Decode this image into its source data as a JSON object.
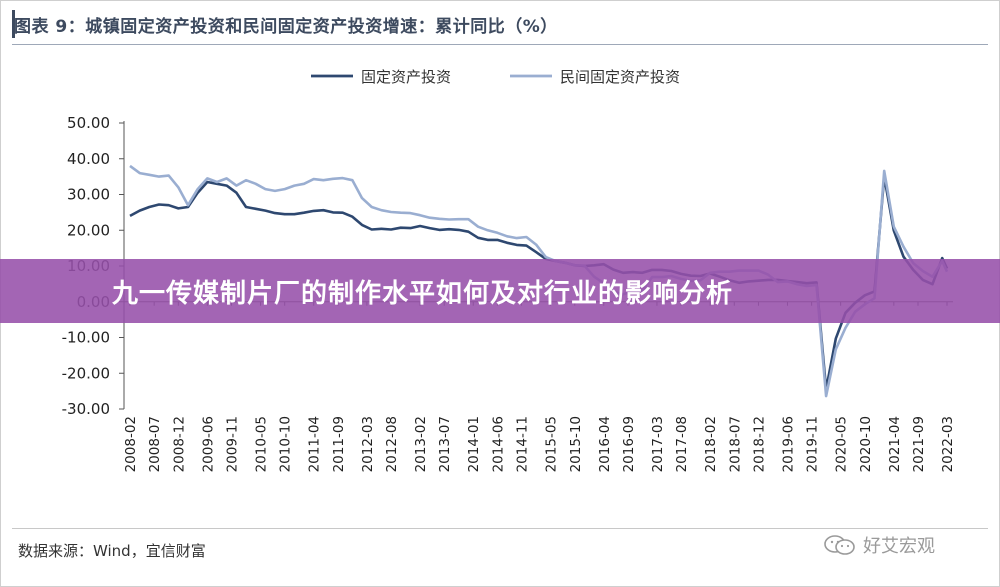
{
  "header": {
    "title": "图表 9：城镇固定资产投资和民间固定资产投资增速：累计同比（%）"
  },
  "source": {
    "text": "数据来源：Wind，宜信财富"
  },
  "watermark": {
    "text": "好艾宏观",
    "icon": "wechat-icon"
  },
  "banner": {
    "text": "九一传媒制片厂的制作水平如何及对行业的影响分析"
  },
  "colors": {
    "series1": "#2e4870",
    "series2": "#9aaed1",
    "banner": "#9650aa"
  },
  "chart_data": {
    "type": "line",
    "title": "图表 9：城镇固定资产投资和民间固定资产投资增速：累计同比（%）",
    "ylim": [
      -30,
      50
    ],
    "yticks": [
      "50.00",
      "40.00",
      "30.00",
      "20.00",
      "10.00",
      "0.00",
      "-10.00",
      "-20.00",
      "-30.00"
    ],
    "xtick_labels": [
      "2008-02",
      "2008-07",
      "2008-12",
      "2009-06",
      "2009-11",
      "2010-05",
      "2010-10",
      "2011-04",
      "2011-09",
      "2012-03",
      "2012-08",
      "2013-02",
      "2013-07",
      "2014-01",
      "2014-06",
      "2014-11",
      "2015-05",
      "2015-10",
      "2016-04",
      "2016-09",
      "2017-03",
      "2017-08",
      "2018-02",
      "2018-07",
      "2018-12",
      "2019-06",
      "2019-11",
      "2020-05",
      "2020-10",
      "2021-04",
      "2021-09",
      "2022-03"
    ],
    "legend_position": "top-center",
    "series": [
      {
        "name": "固定资产投资",
        "points": [
          [
            "2008-02",
            24.0
          ],
          [
            "2008-04",
            25.5
          ],
          [
            "2008-06",
            26.5
          ],
          [
            "2008-08",
            27.2
          ],
          [
            "2008-10",
            27.0
          ],
          [
            "2008-12",
            26.1
          ],
          [
            "2009-02",
            26.5
          ],
          [
            "2009-04",
            30.5
          ],
          [
            "2009-06",
            33.5
          ],
          [
            "2009-08",
            33.0
          ],
          [
            "2009-10",
            32.5
          ],
          [
            "2009-12",
            30.5
          ],
          [
            "2010-02",
            26.5
          ],
          [
            "2010-04",
            26.0
          ],
          [
            "2010-06",
            25.5
          ],
          [
            "2010-08",
            24.8
          ],
          [
            "2010-10",
            24.5
          ],
          [
            "2010-12",
            24.5
          ],
          [
            "2011-02",
            24.9
          ],
          [
            "2011-04",
            25.4
          ],
          [
            "2011-06",
            25.6
          ],
          [
            "2011-08",
            25.0
          ],
          [
            "2011-10",
            24.9
          ],
          [
            "2011-12",
            23.8
          ],
          [
            "2012-02",
            21.5
          ],
          [
            "2012-04",
            20.2
          ],
          [
            "2012-06",
            20.4
          ],
          [
            "2012-08",
            20.2
          ],
          [
            "2012-10",
            20.7
          ],
          [
            "2012-12",
            20.6
          ],
          [
            "2013-02",
            21.2
          ],
          [
            "2013-04",
            20.6
          ],
          [
            "2013-06",
            20.1
          ],
          [
            "2013-08",
            20.3
          ],
          [
            "2013-10",
            20.1
          ],
          [
            "2013-12",
            19.6
          ],
          [
            "2014-02",
            17.9
          ],
          [
            "2014-04",
            17.3
          ],
          [
            "2014-06",
            17.3
          ],
          [
            "2014-08",
            16.5
          ],
          [
            "2014-10",
            15.9
          ],
          [
            "2014-12",
            15.7
          ],
          [
            "2015-02",
            13.9
          ],
          [
            "2015-04",
            12.0
          ],
          [
            "2015-06",
            11.4
          ],
          [
            "2015-08",
            10.9
          ],
          [
            "2015-10",
            10.2
          ],
          [
            "2015-12",
            10.0
          ],
          [
            "2016-02",
            10.2
          ],
          [
            "2016-04",
            10.5
          ],
          [
            "2016-06",
            9.0
          ],
          [
            "2016-08",
            8.1
          ],
          [
            "2016-10",
            8.3
          ],
          [
            "2016-12",
            8.1
          ],
          [
            "2017-02",
            8.9
          ],
          [
            "2017-04",
            8.9
          ],
          [
            "2017-06",
            8.6
          ],
          [
            "2017-08",
            7.8
          ],
          [
            "2017-10",
            7.3
          ],
          [
            "2017-12",
            7.2
          ],
          [
            "2018-02",
            7.9
          ],
          [
            "2018-04",
            7.0
          ],
          [
            "2018-06",
            6.0
          ],
          [
            "2018-08",
            5.3
          ],
          [
            "2018-10",
            5.7
          ],
          [
            "2018-12",
            5.9
          ],
          [
            "2019-02",
            6.1
          ],
          [
            "2019-04",
            6.1
          ],
          [
            "2019-06",
            5.8
          ],
          [
            "2019-08",
            5.5
          ],
          [
            "2019-10",
            5.2
          ],
          [
            "2019-12",
            5.4
          ],
          [
            "2020-02",
            -24.5
          ],
          [
            "2020-04",
            -10.3
          ],
          [
            "2020-06",
            -3.1
          ],
          [
            "2020-08",
            -0.3
          ],
          [
            "2020-10",
            1.8
          ],
          [
            "2020-12",
            2.9
          ],
          [
            "2021-02",
            35.0
          ],
          [
            "2021-04",
            19.9
          ],
          [
            "2021-06",
            12.6
          ],
          [
            "2021-08",
            8.9
          ],
          [
            "2021-10",
            6.1
          ],
          [
            "2021-12",
            4.9
          ],
          [
            "2022-02",
            12.2
          ],
          [
            "2022-03",
            9.3
          ]
        ]
      },
      {
        "name": "民间固定资产投资",
        "points": [
          [
            "2008-02",
            38.0
          ],
          [
            "2008-04",
            36.0
          ],
          [
            "2008-06",
            35.5
          ],
          [
            "2008-08",
            35.0
          ],
          [
            "2008-10",
            35.3
          ],
          [
            "2008-12",
            32.0
          ],
          [
            "2009-02",
            27.0
          ],
          [
            "2009-04",
            31.5
          ],
          [
            "2009-06",
            34.5
          ],
          [
            "2009-08",
            33.5
          ],
          [
            "2009-10",
            34.5
          ],
          [
            "2009-12",
            32.5
          ],
          [
            "2010-02",
            34.0
          ],
          [
            "2010-04",
            33.0
          ],
          [
            "2010-06",
            31.5
          ],
          [
            "2010-08",
            31.0
          ],
          [
            "2010-10",
            31.5
          ],
          [
            "2010-12",
            32.5
          ],
          [
            "2011-02",
            33.0
          ],
          [
            "2011-04",
            34.3
          ],
          [
            "2011-06",
            34.0
          ],
          [
            "2011-08",
            34.4
          ],
          [
            "2011-10",
            34.6
          ],
          [
            "2011-12",
            34.0
          ],
          [
            "2012-02",
            29.0
          ],
          [
            "2012-04",
            26.5
          ],
          [
            "2012-06",
            25.6
          ],
          [
            "2012-08",
            25.1
          ],
          [
            "2012-10",
            24.9
          ],
          [
            "2012-12",
            24.8
          ],
          [
            "2013-02",
            24.2
          ],
          [
            "2013-04",
            23.5
          ],
          [
            "2013-06",
            23.2
          ],
          [
            "2013-08",
            23.0
          ],
          [
            "2013-10",
            23.1
          ],
          [
            "2013-12",
            23.1
          ],
          [
            "2014-02",
            21.0
          ],
          [
            "2014-04",
            20.0
          ],
          [
            "2014-06",
            19.3
          ],
          [
            "2014-08",
            18.3
          ],
          [
            "2014-10",
            17.8
          ],
          [
            "2014-12",
            18.1
          ],
          [
            "2015-02",
            16.0
          ],
          [
            "2015-04",
            12.5
          ],
          [
            "2015-06",
            11.4
          ],
          [
            "2015-08",
            10.9
          ],
          [
            "2015-10",
            10.2
          ],
          [
            "2015-12",
            10.1
          ],
          [
            "2016-02",
            7.0
          ],
          [
            "2016-04",
            5.2
          ],
          [
            "2016-06",
            2.8
          ],
          [
            "2016-08",
            2.1
          ],
          [
            "2016-10",
            2.9
          ],
          [
            "2016-12",
            3.2
          ],
          [
            "2017-02",
            6.9
          ],
          [
            "2017-04",
            6.9
          ],
          [
            "2017-06",
            7.2
          ],
          [
            "2017-08",
            6.4
          ],
          [
            "2017-10",
            5.8
          ],
          [
            "2017-12",
            6.0
          ],
          [
            "2018-02",
            8.1
          ],
          [
            "2018-04",
            8.4
          ],
          [
            "2018-06",
            8.4
          ],
          [
            "2018-08",
            8.7
          ],
          [
            "2018-10",
            8.7
          ],
          [
            "2018-12",
            8.7
          ],
          [
            "2019-02",
            7.6
          ],
          [
            "2019-04",
            5.5
          ],
          [
            "2019-06",
            5.7
          ],
          [
            "2019-08",
            4.9
          ],
          [
            "2019-10",
            4.4
          ],
          [
            "2019-12",
            4.7
          ],
          [
            "2020-02",
            -26.4
          ],
          [
            "2020-04",
            -13.3
          ],
          [
            "2020-06",
            -7.3
          ],
          [
            "2020-08",
            -2.8
          ],
          [
            "2020-10",
            -0.7
          ],
          [
            "2020-12",
            1.0
          ],
          [
            "2021-02",
            36.6
          ],
          [
            "2021-04",
            21.0
          ],
          [
            "2021-06",
            15.4
          ],
          [
            "2021-08",
            10.8
          ],
          [
            "2021-10",
            8.6
          ],
          [
            "2021-12",
            7.0
          ],
          [
            "2022-02",
            11.4
          ],
          [
            "2022-03",
            8.4
          ]
        ]
      }
    ]
  }
}
